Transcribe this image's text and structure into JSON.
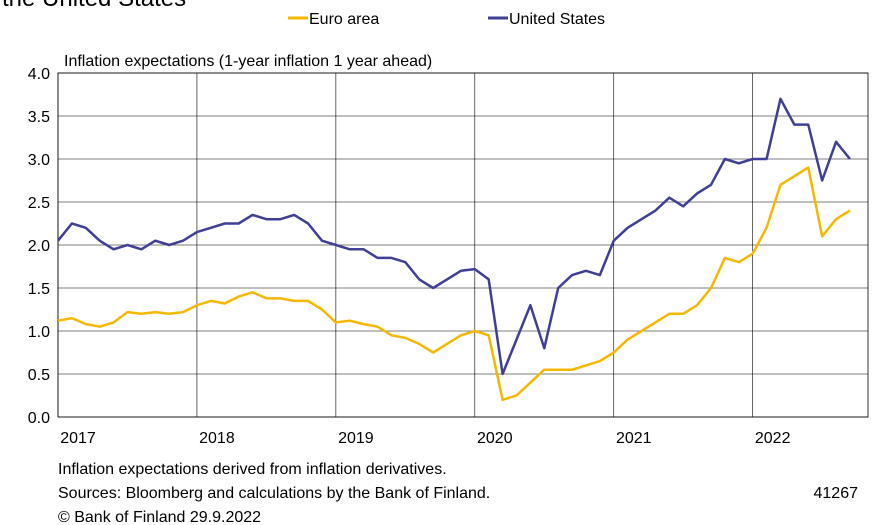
{
  "chart_data": {
    "type": "line",
    "title": "the United States",
    "y_label": "Inflation expectations (1-year inflation 1 year ahead)",
    "x": [
      2017.0,
      2017.1,
      2017.2,
      2017.3,
      2017.4,
      2017.5,
      2017.6,
      2017.7,
      2017.8,
      2017.9,
      2018.0,
      2018.1,
      2018.2,
      2018.3,
      2018.4,
      2018.5,
      2018.6,
      2018.7,
      2018.8,
      2018.9,
      2019.0,
      2019.1,
      2019.2,
      2019.3,
      2019.4,
      2019.5,
      2019.6,
      2019.7,
      2019.8,
      2019.9,
      2020.0,
      2020.1,
      2020.2,
      2020.3,
      2020.4,
      2020.5,
      2020.6,
      2020.7,
      2020.8,
      2020.9,
      2021.0,
      2021.1,
      2021.2,
      2021.3,
      2021.4,
      2021.5,
      2021.6,
      2021.7,
      2021.8,
      2021.9,
      2022.0,
      2022.1,
      2022.2,
      2022.3,
      2022.4,
      2022.5,
      2022.6,
      2022.7
    ],
    "series": [
      {
        "name": "Euro area",
        "color": "#f5b800",
        "values": [
          1.12,
          1.15,
          1.08,
          1.05,
          1.1,
          1.22,
          1.2,
          1.22,
          1.2,
          1.22,
          1.3,
          1.35,
          1.32,
          1.4,
          1.45,
          1.38,
          1.38,
          1.35,
          1.35,
          1.25,
          1.1,
          1.12,
          1.08,
          1.05,
          0.95,
          0.92,
          0.85,
          0.75,
          0.85,
          0.95,
          1.0,
          0.95,
          0.2,
          0.25,
          0.4,
          0.55,
          0.55,
          0.55,
          0.6,
          0.65,
          0.75,
          0.9,
          1.0,
          1.1,
          1.2,
          1.2,
          1.3,
          1.5,
          1.85,
          1.8,
          1.9,
          2.2,
          2.7,
          2.8,
          2.9,
          2.1,
          2.3,
          2.4
        ]
      },
      {
        "name": "United States",
        "color": "#3f3f96",
        "values": [
          2.05,
          2.25,
          2.2,
          2.05,
          1.95,
          2.0,
          1.95,
          2.05,
          2.0,
          2.05,
          2.15,
          2.2,
          2.25,
          2.25,
          2.35,
          2.3,
          2.3,
          2.35,
          2.25,
          2.05,
          2.0,
          1.95,
          1.95,
          1.85,
          1.85,
          1.8,
          1.6,
          1.5,
          1.6,
          1.7,
          1.72,
          1.6,
          0.5,
          0.9,
          1.3,
          0.8,
          1.5,
          1.65,
          1.7,
          1.65,
          2.05,
          2.2,
          2.3,
          2.4,
          2.55,
          2.45,
          2.6,
          2.7,
          3.0,
          2.95,
          3.0,
          3.0,
          3.7,
          3.4,
          3.4,
          2.75,
          3.2,
          3.0
        ]
      }
    ],
    "xlim": [
      2017,
      2022.83
    ],
    "xticks": [
      2017,
      2018,
      2019,
      2020,
      2021,
      2022
    ],
    "ylim": [
      0,
      4
    ],
    "yticks": [
      {
        "value": 0,
        "label": "0.0"
      },
      {
        "value": 0.5,
        "label": "0.5"
      },
      {
        "value": 1,
        "label": "1.0"
      },
      {
        "value": 1.5,
        "label": "1.5"
      },
      {
        "value": 2,
        "label": "2.0"
      },
      {
        "value": 2.5,
        "label": "2.5"
      },
      {
        "value": 3,
        "label": "3.0"
      },
      {
        "value": 3.5,
        "label": "3.5"
      },
      {
        "value": 4,
        "label": "4.0"
      }
    ],
    "grid": true,
    "notes": [
      "Inflation expectations derived from inflation derivatives.",
      "Sources: Bloomberg and calculations by the Bank of Finland.",
      "© Bank of Finland 29.9.2022"
    ],
    "chart_id": "41267"
  }
}
